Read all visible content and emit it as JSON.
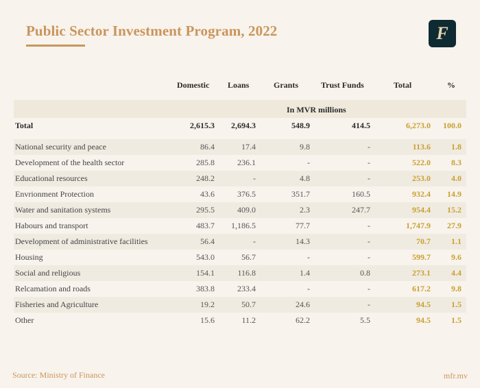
{
  "header": {
    "title": "Public Sector Investment Program, 2022",
    "logo_letter": "F"
  },
  "columns": [
    "Domestic",
    "Loans",
    "Grants",
    "Trust Funds",
    "Total",
    "%"
  ],
  "units": "In MVR millions",
  "total_row": {
    "label": "Total",
    "domestic": "2,615.3",
    "loans": "2,694.3",
    "grants": "548.9",
    "trust_funds": "414.5",
    "total": "6,273.0",
    "pct": "100.0"
  },
  "rows": [
    {
      "label": "National security and peace",
      "domestic": "86.4",
      "loans": "17.4",
      "grants": "9.8",
      "trust_funds": "-",
      "total": "113.6",
      "pct": "1.8"
    },
    {
      "label": "Development of the health sector",
      "domestic": "285.8",
      "loans": "236.1",
      "grants": "-",
      "trust_funds": "-",
      "total": "522.0",
      "pct": "8.3"
    },
    {
      "label": "Educational resources",
      "domestic": "248.2",
      "loans": "-",
      "grants": "4.8",
      "trust_funds": "-",
      "total": "253.0",
      "pct": "4.0"
    },
    {
      "label": "Envrionment Protection",
      "domestic": "43.6",
      "loans": "376.5",
      "grants": "351.7",
      "trust_funds": "160.5",
      "total": "932.4",
      "pct": "14.9"
    },
    {
      "label": "Water and sanitation systems",
      "domestic": "295.5",
      "loans": "409.0",
      "grants": "2.3",
      "trust_funds": "247.7",
      "total": "954.4",
      "pct": "15.2"
    },
    {
      "label": "Habours and transport",
      "domestic": "483.7",
      "loans": "1,186.5",
      "grants": "77.7",
      "trust_funds": "-",
      "total": "1,747.9",
      "pct": "27.9"
    },
    {
      "label": "Development of administrative facilities",
      "domestic": "56.4",
      "loans": "-",
      "grants": "14.3",
      "trust_funds": "-",
      "total": "70.7",
      "pct": "1.1"
    },
    {
      "label": "Housing",
      "domestic": "543.0",
      "loans": "56.7",
      "grants": "-",
      "trust_funds": "-",
      "total": "599.7",
      "pct": "9.6"
    },
    {
      "label": "Social and religious",
      "domestic": "154.1",
      "loans": "116.8",
      "grants": "1.4",
      "trust_funds": "0.8",
      "total": "273.1",
      "pct": "4.4"
    },
    {
      "label": "Relcamation and roads",
      "domestic": "383.8",
      "loans": "233.4",
      "grants": "-",
      "trust_funds": "-",
      "total": "617.2",
      "pct": "9.8"
    },
    {
      "label": "Fisheries and Agriculture",
      "domestic": "19.2",
      "loans": "50.7",
      "grants": "24.6",
      "trust_funds": "-",
      "total": "94.5",
      "pct": "1.5"
    },
    {
      "label": "Other",
      "domestic": "15.6",
      "loans": "11.2",
      "grants": "62.2",
      "trust_funds": "5.5",
      "total": "94.5",
      "pct": "1.5"
    }
  ],
  "footer": {
    "source": "Source: Ministry of Finance",
    "site": "mfr.mv"
  },
  "colors": {
    "accent": "#c9955c",
    "value_gold": "#c9a030",
    "logo_bg": "#0e2a33"
  }
}
